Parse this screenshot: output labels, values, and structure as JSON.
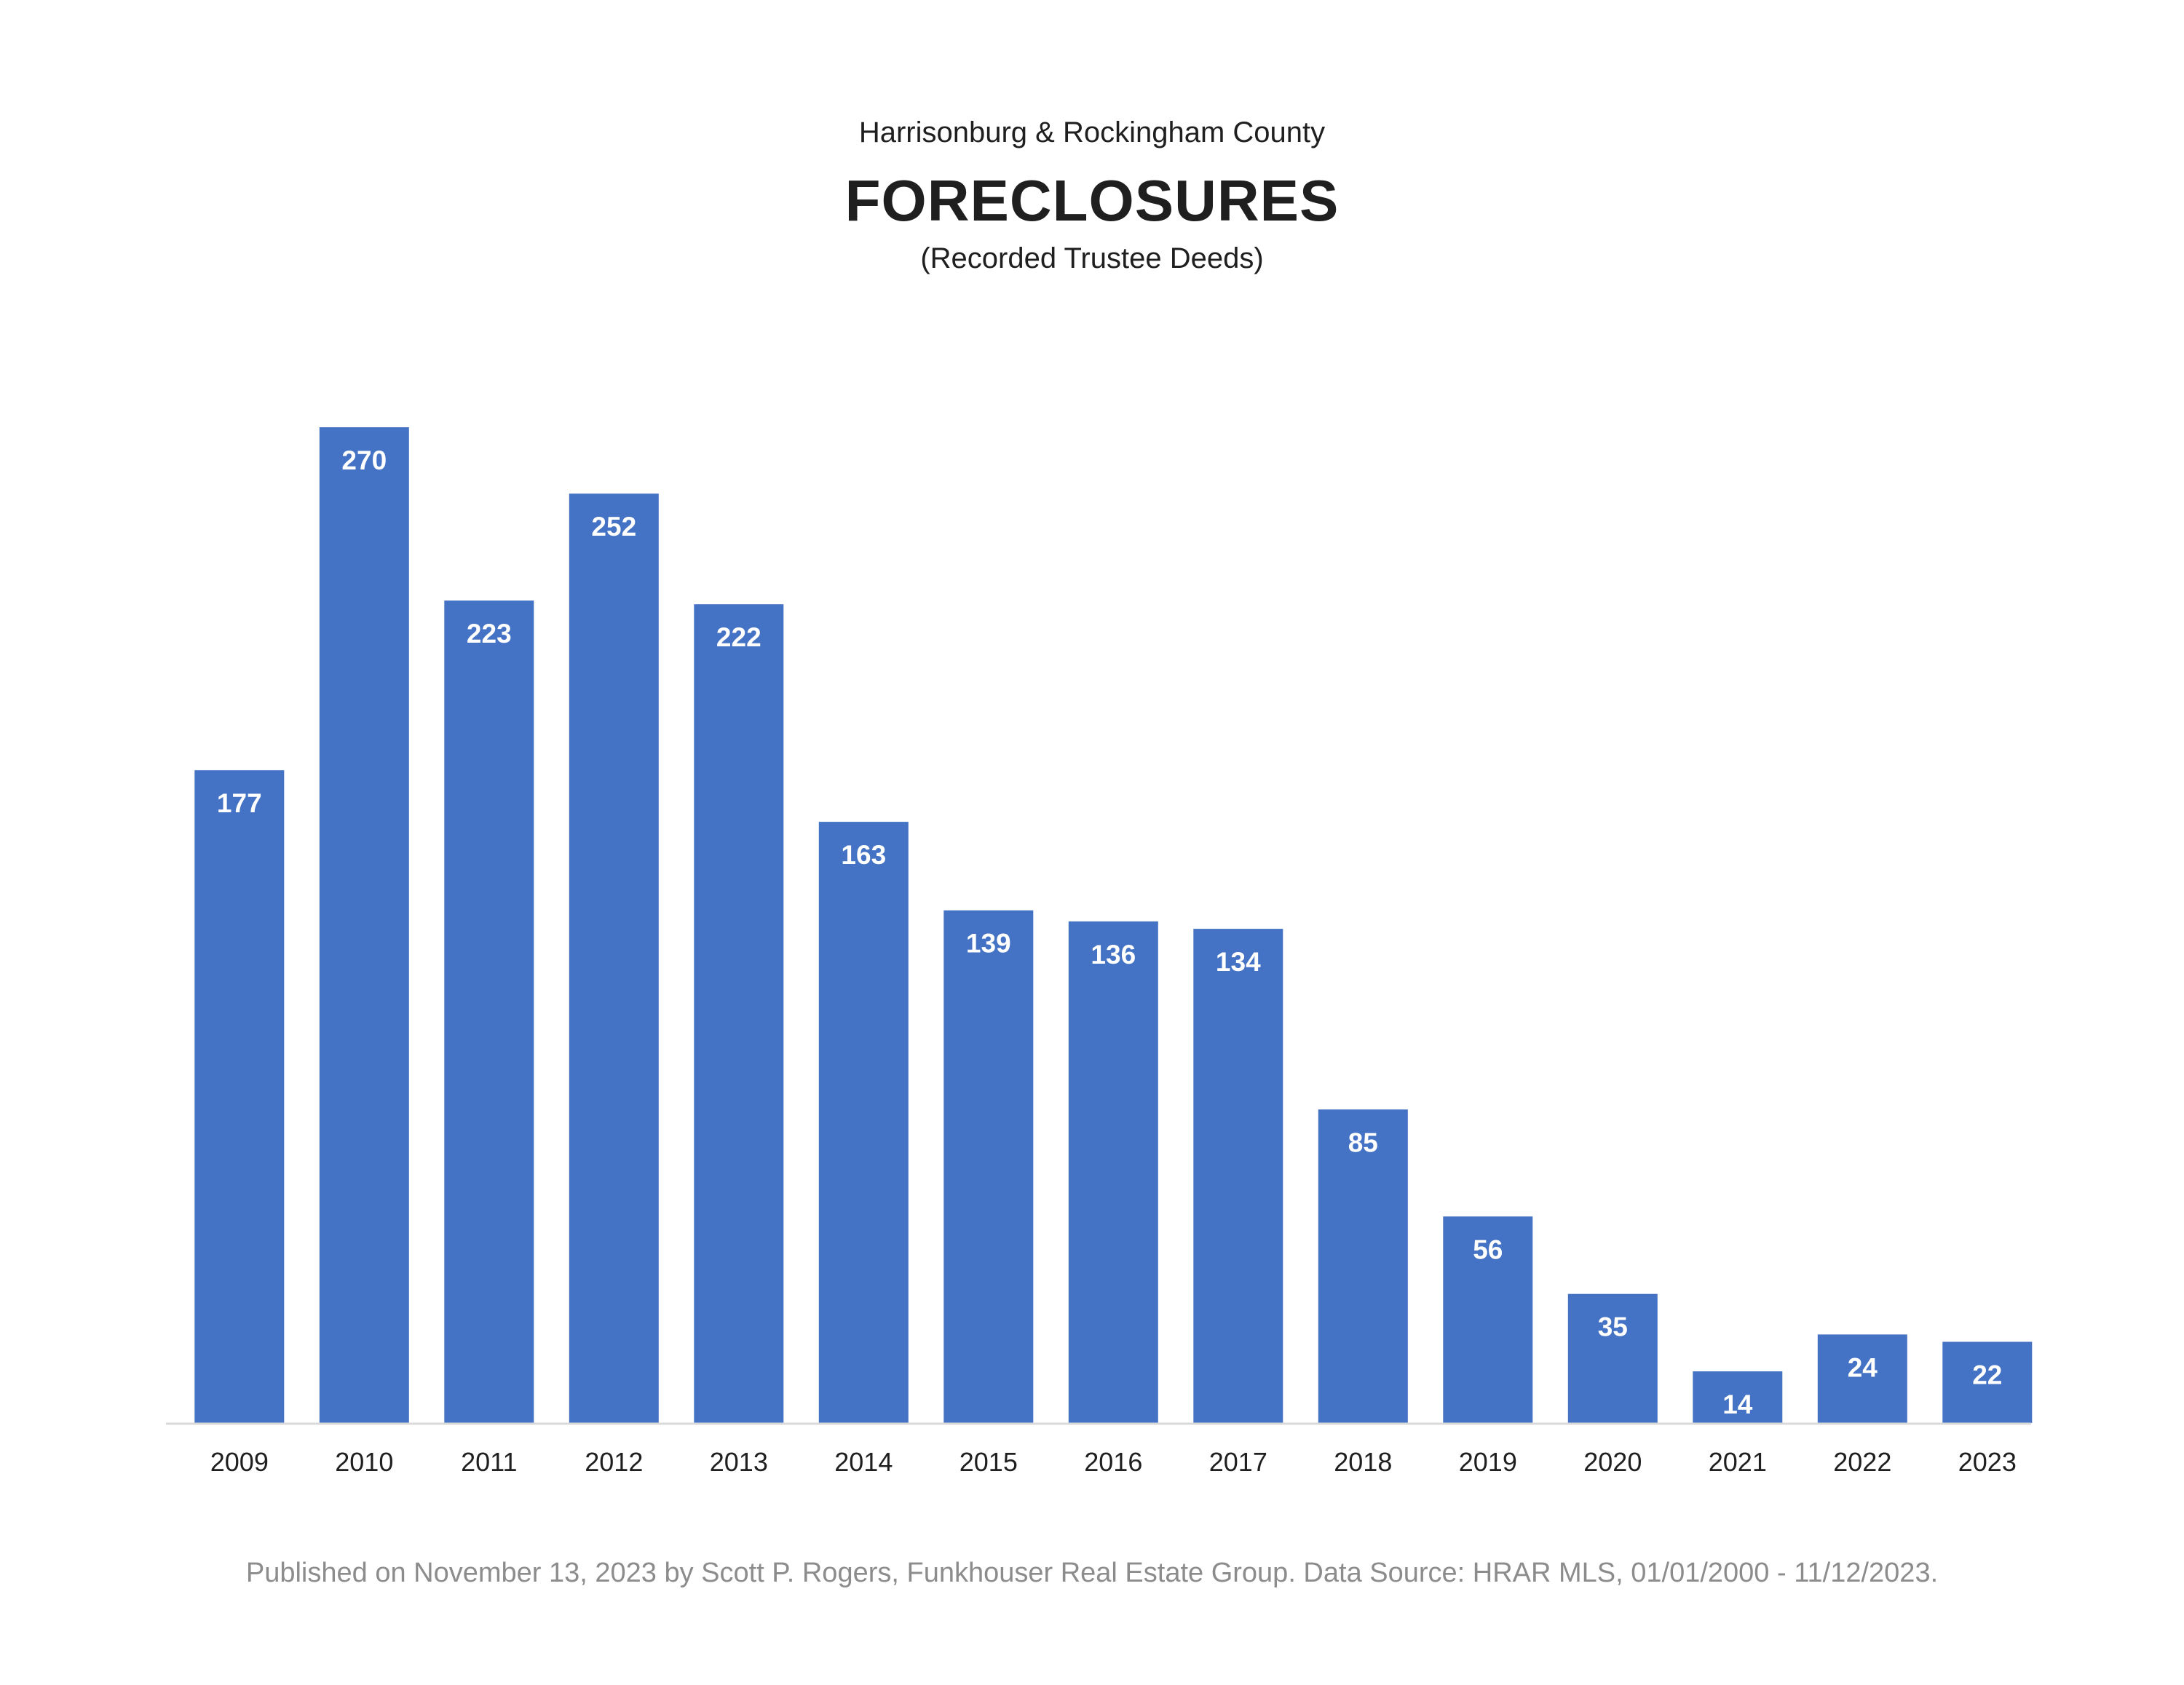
{
  "chart_data": {
    "type": "bar",
    "pretitle": "Harrisonburg & Rockingham County",
    "title": "FORECLOSURES",
    "subtitle": "(Recorded Trustee Deeds)",
    "categories": [
      "2009",
      "2010",
      "2011",
      "2012",
      "2013",
      "2014",
      "2015",
      "2016",
      "2017",
      "2018",
      "2019",
      "2020",
      "2021",
      "2022",
      "2023"
    ],
    "values": [
      177,
      270,
      223,
      252,
      222,
      163,
      139,
      136,
      134,
      85,
      56,
      35,
      14,
      24,
      22
    ],
    "data_labels": [
      "177",
      "270",
      "223",
      "252",
      "222",
      "163",
      "139",
      "136",
      "134",
      "85",
      "56",
      "35",
      "14",
      "24",
      "22"
    ],
    "ylim": [
      0,
      270
    ],
    "grid": false,
    "legend": "none",
    "bar_color": "#4472c4",
    "label_color": "#ffffff",
    "axis_color": "#d9d9d9"
  },
  "footer": {
    "text": "Published on November 13, 2023 by Scott P. Rogers, Funkhouser Real Estate Group. Data Source: HRAR MLS, 01/01/2000 - 11/12/2023."
  }
}
